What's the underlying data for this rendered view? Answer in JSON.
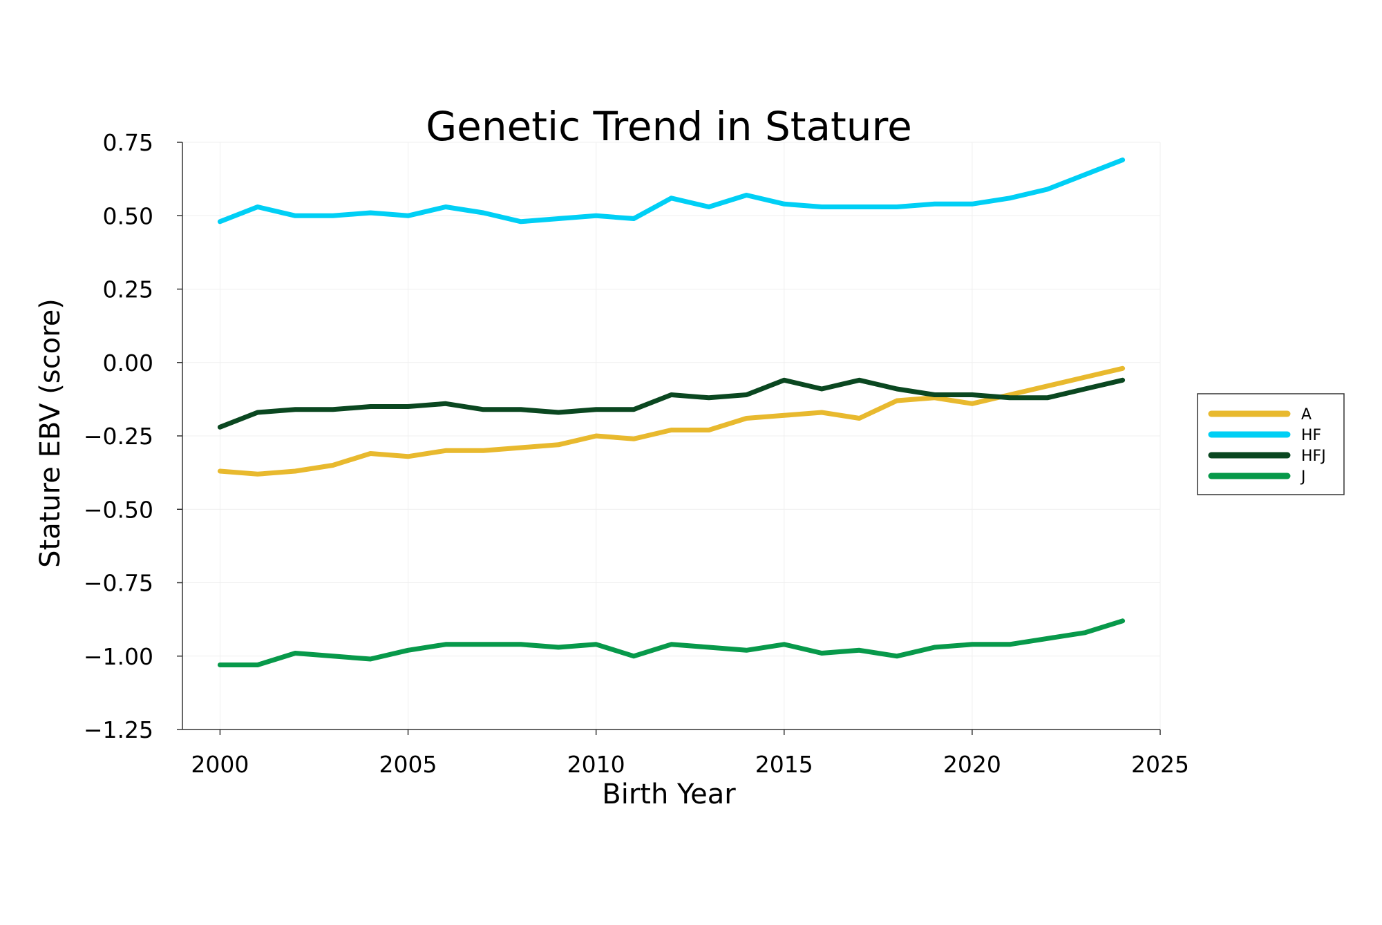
{
  "chart_data": {
    "type": "line",
    "title": "Genetic Trend in Stature",
    "xlabel": "Birth Year",
    "ylabel": "Stature EBV (score)",
    "xlim": [
      1999,
      2025
    ],
    "ylim": [
      -1.25,
      0.75
    ],
    "x_ticks": [
      2000,
      2005,
      2010,
      2015,
      2020,
      2025
    ],
    "y_ticks": [
      0.75,
      0.5,
      0.25,
      0.0,
      -0.25,
      -0.5,
      -0.75,
      -1.0,
      -1.25
    ],
    "y_tick_labels": [
      "0.75",
      "0.50",
      "0.25",
      "0.00",
      "−0.25",
      "−0.50",
      "−0.75",
      "−1.00",
      "−1.25"
    ],
    "grid": true,
    "legend_position": "right",
    "x": [
      2000,
      2001,
      2002,
      2003,
      2004,
      2005,
      2006,
      2007,
      2008,
      2009,
      2010,
      2011,
      2012,
      2013,
      2014,
      2015,
      2016,
      2017,
      2018,
      2019,
      2020,
      2021,
      2022,
      2023,
      2024
    ],
    "series": [
      {
        "name": "A",
        "color": "#E8B92E",
        "values": [
          -0.37,
          -0.38,
          -0.37,
          -0.35,
          -0.31,
          -0.32,
          -0.3,
          -0.3,
          -0.29,
          -0.28,
          -0.25,
          -0.26,
          -0.23,
          -0.23,
          -0.19,
          -0.18,
          -0.17,
          -0.19,
          -0.13,
          -0.12,
          -0.14,
          -0.11,
          -0.08,
          -0.05,
          -0.02
        ]
      },
      {
        "name": "HF",
        "color": "#00CFF5",
        "values": [
          0.48,
          0.53,
          0.5,
          0.5,
          0.51,
          0.5,
          0.53,
          0.51,
          0.48,
          0.49,
          0.5,
          0.49,
          0.56,
          0.53,
          0.57,
          0.54,
          0.53,
          0.53,
          0.53,
          0.54,
          0.54,
          0.56,
          0.59,
          0.64,
          0.69
        ]
      },
      {
        "name": "HFJ",
        "color": "#0A4720",
        "values": [
          -0.22,
          -0.17,
          -0.16,
          -0.16,
          -0.15,
          -0.15,
          -0.14,
          -0.16,
          -0.16,
          -0.17,
          -0.16,
          -0.16,
          -0.11,
          -0.12,
          -0.11,
          -0.06,
          -0.09,
          -0.06,
          -0.09,
          -0.11,
          -0.11,
          -0.12,
          -0.12,
          -0.09,
          -0.06
        ]
      },
      {
        "name": "J",
        "color": "#07994A",
        "values": [
          -1.03,
          -1.03,
          -0.99,
          -1.0,
          -1.01,
          -0.98,
          -0.96,
          -0.96,
          -0.96,
          -0.97,
          -0.96,
          -1.0,
          -0.96,
          -0.97,
          -0.98,
          -0.96,
          -0.99,
          -0.98,
          -1.0,
          -0.97,
          -0.96,
          -0.96,
          -0.94,
          -0.92,
          -0.88
        ]
      }
    ]
  }
}
